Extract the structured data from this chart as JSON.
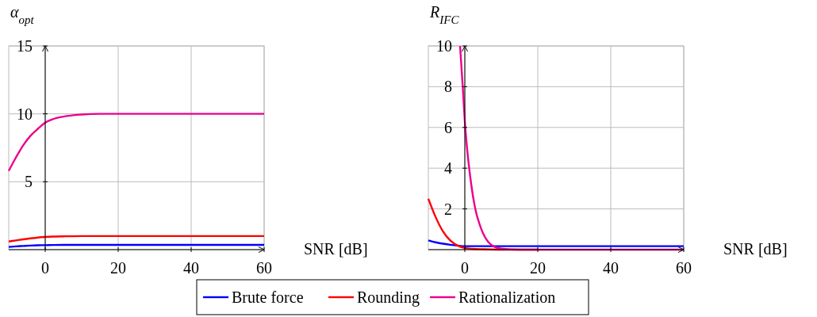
{
  "chart_data": [
    {
      "type": "line",
      "ylabel": "α$_{opt}$",
      "xlabel": "SNR [dB]",
      "xlim": [
        -10,
        60
      ],
      "ylim": [
        0,
        15
      ],
      "xticks": [
        0,
        20,
        40,
        60
      ],
      "yticks": [
        5,
        10,
        15
      ],
      "grid": true,
      "legend": "bottom",
      "line_style": "solid",
      "marker": "none",
      "x": [
        -10,
        -8,
        -6,
        -4,
        -2,
        0,
        2,
        5,
        10,
        15,
        20,
        30,
        40,
        50,
        60
      ],
      "series": [
        {
          "name": "Brute force",
          "color": "#0000ff",
          "values": [
            0.2,
            0.24,
            0.27,
            0.3,
            0.32,
            0.33,
            0.34,
            0.35,
            0.35,
            0.35,
            0.35,
            0.35,
            0.35,
            0.35,
            0.35
          ]
        },
        {
          "name": "Rounding",
          "color": "#ff0000",
          "values": [
            0.6,
            0.68,
            0.76,
            0.83,
            0.89,
            0.93,
            0.96,
            0.98,
            1.0,
            1.0,
            1.0,
            1.0,
            1.0,
            1.0,
            1.0
          ]
        },
        {
          "name": "Rationalization",
          "color": "#ec008c",
          "values": [
            5.8,
            6.8,
            7.7,
            8.4,
            8.9,
            9.35,
            9.6,
            9.8,
            9.95,
            10,
            10,
            10,
            10,
            10,
            10
          ]
        }
      ]
    },
    {
      "type": "line",
      "ylabel": "R$_{IFC}$",
      "xlabel": "SNR [dB]",
      "xlim": [
        -10,
        60
      ],
      "ylim": [
        0,
        10
      ],
      "xticks": [
        0,
        20,
        40,
        60
      ],
      "yticks": [
        2,
        4,
        6,
        8,
        10
      ],
      "grid": true,
      "line_style": "solid",
      "marker": "none",
      "series": [
        {
          "color": "#0000ff",
          "x": [
            -10,
            -8,
            -6,
            -4,
            -2,
            0,
            5,
            10,
            20,
            40,
            60
          ],
          "values": [
            0.45,
            0.36,
            0.29,
            0.24,
            0.2,
            0.17,
            0.17,
            0.17,
            0.17,
            0.17,
            0.17
          ]
        },
        {
          "color": "#ff0000",
          "x": [
            -10,
            -8,
            -6,
            -4,
            -2,
            0,
            2,
            5,
            10,
            20
          ],
          "values": [
            2.5,
            1.6,
            0.9,
            0.45,
            0.2,
            0.08,
            0.04,
            0.02,
            0,
            0
          ]
        },
        {
          "color": "#ec008c",
          "x": [
            -1.3,
            -0.5,
            0,
            1,
            2,
            3,
            4,
            5,
            6.5,
            8,
            10,
            15,
            20,
            40,
            60
          ],
          "values": [
            10,
            7.8,
            6.3,
            4.3,
            2.9,
            1.9,
            1.27,
            0.8,
            0.36,
            0.15,
            0.05,
            0,
            0,
            0,
            0
          ]
        }
      ]
    }
  ]
}
